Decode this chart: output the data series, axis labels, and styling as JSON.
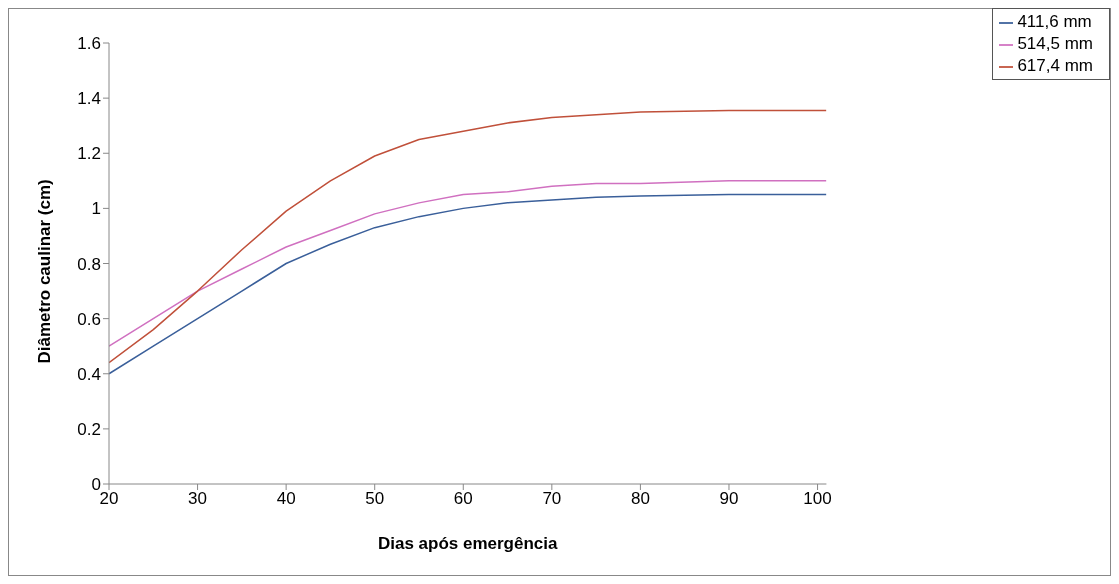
{
  "chart_data": {
    "type": "line",
    "xlabel": "Dias após emergência",
    "ylabel": "Diâmetro caulinar (cm)",
    "x": [
      20,
      25,
      30,
      35,
      40,
      45,
      50,
      55,
      60,
      65,
      70,
      75,
      80,
      90,
      101
    ],
    "series": [
      {
        "name": "411,6 mm",
        "color": "#3a5f9a",
        "values": [
          0.4,
          0.5,
          0.6,
          0.7,
          0.8,
          0.87,
          0.93,
          0.97,
          1.0,
          1.02,
          1.03,
          1.04,
          1.045,
          1.05,
          1.05
        ]
      },
      {
        "name": "514,5 mm",
        "color": "#d070c0",
        "values": [
          0.5,
          0.6,
          0.7,
          0.78,
          0.86,
          0.92,
          0.98,
          1.02,
          1.05,
          1.06,
          1.08,
          1.09,
          1.09,
          1.1,
          1.1
        ]
      },
      {
        "name": "617,4 mm",
        "color": "#c0503a",
        "values": [
          0.44,
          0.56,
          0.7,
          0.85,
          0.99,
          1.1,
          1.19,
          1.25,
          1.28,
          1.31,
          1.33,
          1.34,
          1.35,
          1.355,
          1.355
        ]
      }
    ],
    "xlim": [
      20,
      101
    ],
    "xticks": [
      20,
      30,
      40,
      50,
      60,
      70,
      80,
      90,
      100
    ],
    "ylim": [
      0,
      1.6
    ],
    "yticks": [
      0,
      0.2,
      0.4,
      0.6,
      0.8,
      1,
      1.2,
      1.4,
      1.6
    ],
    "grid": false,
    "legend": "top right",
    "marker": "none",
    "line_style": "solid"
  }
}
